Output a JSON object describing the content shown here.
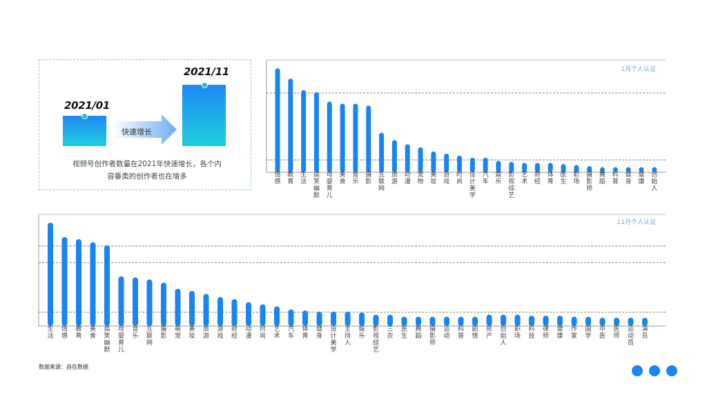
{
  "info": {
    "year_start": "2021/01",
    "year_end": "2021/11",
    "arrow_label": "快速增长",
    "description": "视频号创作者数量在2021年快速增长，各个内容垂类的创作者也在增多"
  },
  "source": "数据来源：自在数据",
  "colors": {
    "bar": "#1a84f0",
    "axis": "#999999",
    "grid_dash": "#555555",
    "accent": "#25c4b8"
  },
  "chart_data": [
    {
      "type": "bar",
      "legend": "1月个人认证",
      "grid": true,
      "categories": [
        "情感",
        "教育",
        "生活",
        "搞笑幽默",
        "母婴育儿",
        "美食",
        "音乐",
        "摄影",
        "互联网",
        "旅游",
        "动漫",
        "宠物",
        "美妆",
        "游戏",
        "时尚",
        "设计美学",
        "汽车",
        "娱乐",
        "影视综艺",
        "艺术",
        "财经",
        "体育",
        "医生",
        "职场",
        "摄影师",
        "舞蹈",
        "科普",
        "健身",
        "健康",
        "创始人"
      ],
      "values": [
        100,
        90,
        79,
        77,
        68,
        66,
        66,
        64,
        38,
        31,
        27,
        24,
        20,
        18,
        16,
        14,
        14,
        11,
        10,
        9,
        9,
        9,
        8,
        7,
        6,
        5,
        5,
        5,
        5,
        5
      ],
      "ylim": [
        0,
        100
      ]
    },
    {
      "type": "bar",
      "legend": "11月个人认证",
      "grid": true,
      "categories": [
        "生活",
        "情感",
        "教育",
        "美食",
        "搞笑幽默",
        "母婴育儿",
        "音乐",
        "互联网",
        "摄影",
        "萌宠",
        "美妆",
        "旅游",
        "游戏",
        "财经",
        "动漫",
        "时尚",
        "艺术",
        "汽车",
        "体育",
        "健身",
        "设计美学",
        "主持人",
        "娱乐",
        "影视综艺",
        "三农",
        "医生",
        "舞蹈",
        "摄影师",
        "运动",
        "科普",
        "剧情",
        "房产",
        "创始人",
        "职场",
        "科技",
        "律师",
        "健康",
        "作家",
        "国学",
        "中医",
        "医师",
        "运动员",
        "演员"
      ],
      "values": [
        100,
        86,
        84,
        81,
        78,
        48,
        47,
        45,
        42,
        36,
        34,
        31,
        28,
        26,
        23,
        21,
        19,
        16,
        15,
        14,
        14,
        14,
        13,
        11,
        11,
        9,
        9,
        9,
        9,
        9,
        9,
        11,
        11,
        11,
        10,
        10,
        10,
        9,
        9,
        8,
        8,
        8,
        8
      ],
      "ylim": [
        0,
        100
      ]
    }
  ]
}
